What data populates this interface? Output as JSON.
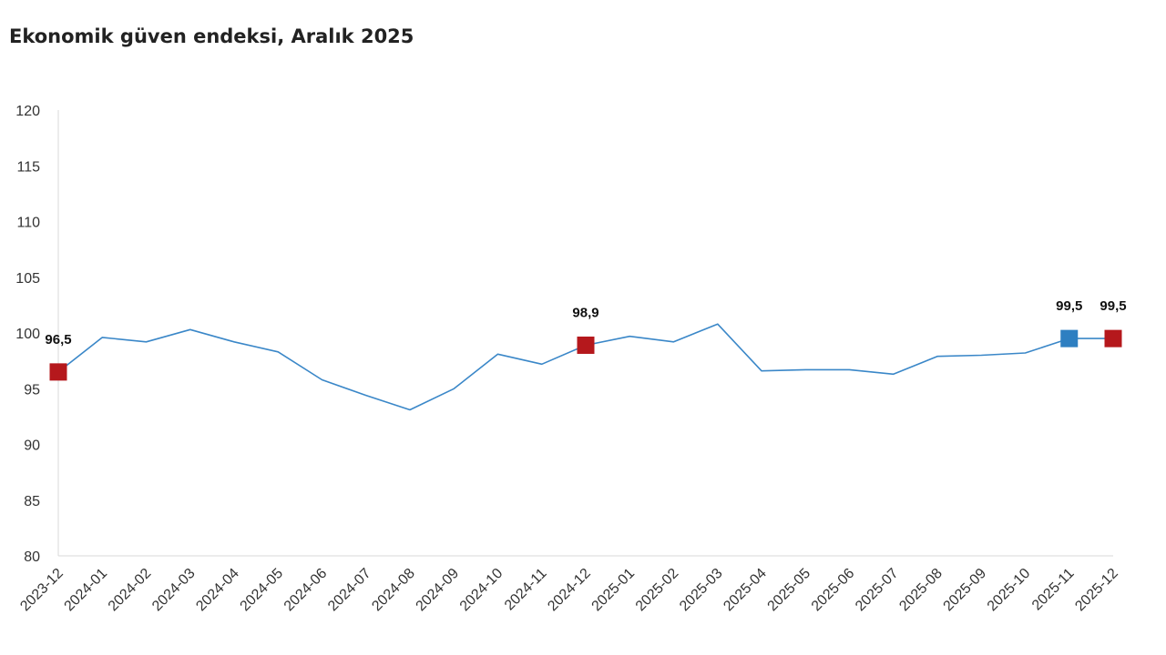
{
  "chart_data": {
    "type": "line",
    "title": "Ekonomik güven endeksi, Aralık 2025",
    "xlabel": "",
    "ylabel": "",
    "ylim": [
      80,
      120
    ],
    "yticks": [
      "80",
      "85",
      "90",
      "95",
      "100",
      "105",
      "110",
      "115",
      "120"
    ],
    "grid": false,
    "legend": "none",
    "categories": [
      "2023-12",
      "2024-01",
      "2024-02",
      "2024-03",
      "2024-04",
      "2024-05",
      "2024-06",
      "2024-07",
      "2024-08",
      "2024-09",
      "2024-10",
      "2024-11",
      "2024-12",
      "2025-01",
      "2025-02",
      "2025-03",
      "2025-04",
      "2025-05",
      "2025-06",
      "2025-07",
      "2025-08",
      "2025-09",
      "2025-10",
      "2025-11",
      "2025-12"
    ],
    "series": [
      {
        "values": [
          96.5,
          99.6,
          99.2,
          100.3,
          99.2,
          98.3,
          95.8,
          94.4,
          93.1,
          95.0,
          98.1,
          97.2,
          98.9,
          99.7,
          99.2,
          100.8,
          96.6,
          96.7,
          96.7,
          96.3,
          97.9,
          98.0,
          98.2,
          99.5,
          99.5
        ],
        "color": "#3a87c8"
      }
    ],
    "highlights": [
      {
        "category": "2023-12",
        "value": 96.5,
        "label": "96,5",
        "color": "#b5181c"
      },
      {
        "category": "2024-12",
        "value": 98.9,
        "label": "98,9",
        "color": "#b5181c"
      },
      {
        "category": "2025-11",
        "value": 99.5,
        "label": "99,5",
        "color": "#2e7fc1"
      },
      {
        "category": "2025-12",
        "value": 99.5,
        "label": "99,5",
        "color": "#b5181c"
      }
    ],
    "axis_color": "#d9d9d9"
  }
}
